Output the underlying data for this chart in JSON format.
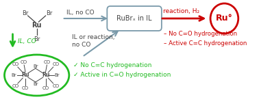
{
  "bg_color": "#ffffff",
  "green_color": "#22bb22",
  "red_color": "#cc0000",
  "dark_color": "#444444",
  "gray_color": "#7a9aaa",
  "rubr_box_text": "RuBrₓ in IL",
  "reaction_h2_text": "reaction, H₂",
  "ru0_text": "Ru°",
  "il_co_text": "IL, CO",
  "il_no_co_text": "IL, no CO",
  "il_or_reaction_text": "IL or reaction,\nno CO",
  "red_bullet1": "– No C=O hydrogenation",
  "red_bullet2": "– Active C=C hydrogenation",
  "green_check1": "✓ No C=C hydrogenation",
  "green_check2": "✓ Active in C=O hydrogenation"
}
